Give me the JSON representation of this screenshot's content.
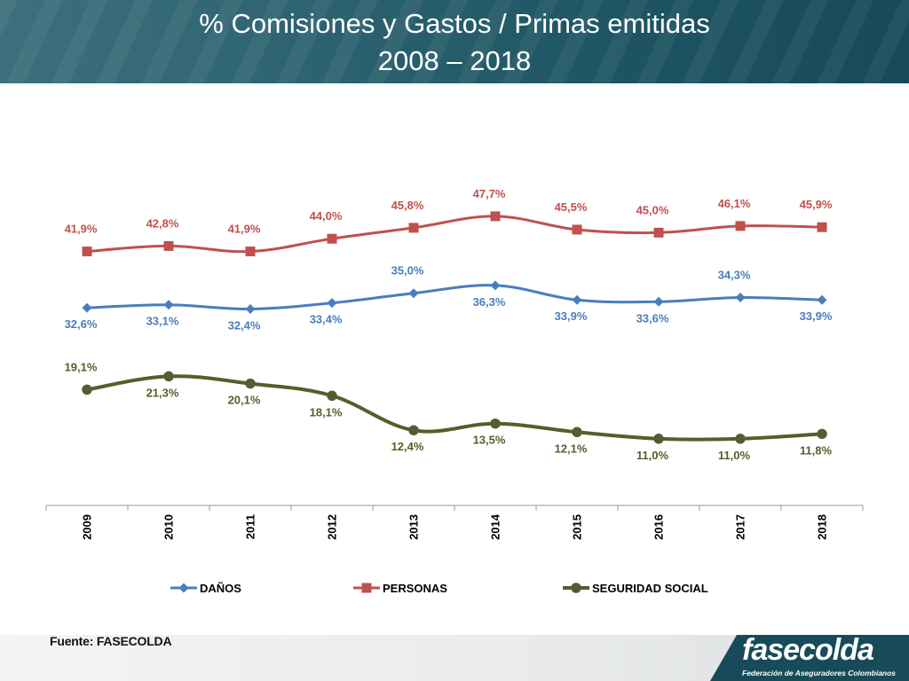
{
  "header": {
    "title_line1": "% Comisiones y Gastos / Primas emitidas",
    "title_line2": "2008 – 2018"
  },
  "footer": {
    "source": "Fuente: FASECOLDA",
    "logo_text": "fasecolda",
    "logo_subtitle": "Federación de Aseguradores Colombianos"
  },
  "chart_data": {
    "type": "line",
    "title": "% Comisiones y Gastos / Primas emitidas 2008 – 2018",
    "categories": [
      "2009",
      "2010",
      "2011",
      "2012",
      "2013",
      "2014",
      "2015",
      "2016",
      "2017",
      "2018"
    ],
    "ylim": [
      0,
      55
    ],
    "grid": false,
    "legend": "bottom",
    "series": [
      {
        "name": "DAÑOS",
        "color": "#4a7ebb",
        "marker": "diamond",
        "values": [
          32.6,
          33.1,
          32.4,
          33.4,
          35.0,
          36.3,
          33.9,
          33.6,
          34.3,
          33.9
        ],
        "labels": [
          "32,6%",
          "33,1%",
          "32,4%",
          "33,4%",
          "35,0%",
          "36,3%",
          "33,9%",
          "33,6%",
          "34,3%",
          "33,9%"
        ],
        "label_pos": [
          "below",
          "below",
          "below",
          "below",
          "above",
          "below",
          "below",
          "below",
          "above",
          "below"
        ]
      },
      {
        "name": "PERSONAS",
        "color": "#c0504d",
        "marker": "square",
        "values": [
          41.9,
          42.8,
          41.9,
          44.0,
          45.8,
          47.7,
          45.5,
          45.0,
          46.1,
          45.9
        ],
        "labels": [
          "41,9%",
          "42,8%",
          "41,9%",
          "44,0%",
          "45,8%",
          "47,7%",
          "45,5%",
          "45,0%",
          "46,1%",
          "45,9%"
        ],
        "label_pos": [
          "above",
          "above",
          "above",
          "above",
          "above",
          "above",
          "above",
          "above",
          "above",
          "above"
        ]
      },
      {
        "name": "SEGURIDAD SOCIAL",
        "color": "#4f6228",
        "marker": "circle",
        "values": [
          19.1,
          21.3,
          20.1,
          18.1,
          12.4,
          13.5,
          12.1,
          11.0,
          11.0,
          11.8
        ],
        "labels": [
          "19,1%",
          "21,3%",
          "20,1%",
          "18,1%",
          "12,4%",
          "13,5%",
          "12,1%",
          "11,0%",
          "11,0%",
          "11,8%"
        ],
        "label_pos": [
          "above",
          "below",
          "below",
          "below",
          "below",
          "below",
          "below",
          "below",
          "below",
          "below"
        ]
      }
    ]
  }
}
